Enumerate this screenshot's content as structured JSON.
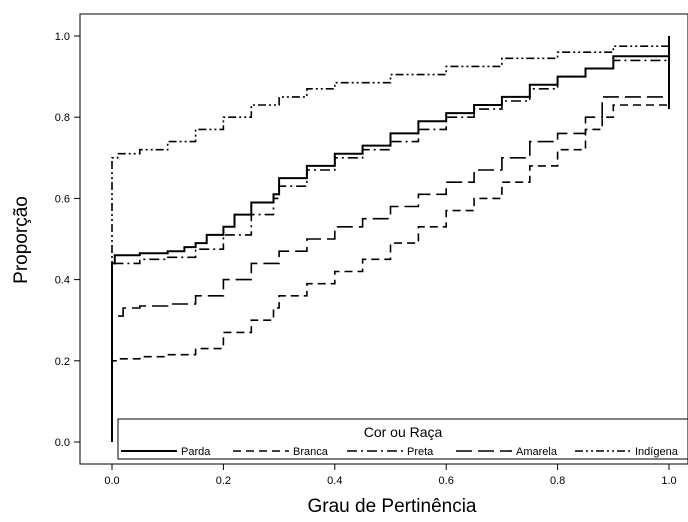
{
  "chart_data": {
    "type": "line",
    "xlabel": "Grau de Pertinência",
    "ylabel": "Proporção",
    "xlim": [
      0,
      1
    ],
    "ylim": [
      0,
      1
    ],
    "xticks": [
      "0.0",
      "0.2",
      "0.4",
      "0.6",
      "0.8",
      "1.0"
    ],
    "yticks": [
      "0.0",
      "0.2",
      "0.4",
      "0.6",
      "0.8",
      "1.0"
    ],
    "grid": false,
    "legend": {
      "title": "Cor ou Raça",
      "position": "bottom"
    },
    "series": [
      {
        "name": "Parda",
        "dash": "solid",
        "points": [
          [
            0,
            0
          ],
          [
            0,
            0.44
          ],
          [
            0.005,
            0.46
          ],
          [
            0.05,
            0.465
          ],
          [
            0.1,
            0.47
          ],
          [
            0.13,
            0.48
          ],
          [
            0.15,
            0.49
          ],
          [
            0.17,
            0.51
          ],
          [
            0.2,
            0.53
          ],
          [
            0.22,
            0.56
          ],
          [
            0.25,
            0.59
          ],
          [
            0.29,
            0.61
          ],
          [
            0.3,
            0.65
          ],
          [
            0.35,
            0.68
          ],
          [
            0.4,
            0.71
          ],
          [
            0.45,
            0.73
          ],
          [
            0.5,
            0.76
          ],
          [
            0.55,
            0.79
          ],
          [
            0.6,
            0.81
          ],
          [
            0.65,
            0.83
          ],
          [
            0.7,
            0.85
          ],
          [
            0.75,
            0.88
          ],
          [
            0.8,
            0.9
          ],
          [
            0.85,
            0.92
          ],
          [
            0.9,
            0.95
          ],
          [
            1,
            0.955
          ]
        ]
      },
      {
        "name": "Branca",
        "dash": "dashed",
        "points": [
          [
            0,
            0
          ],
          [
            0,
            0.2
          ],
          [
            0.01,
            0.205
          ],
          [
            0.05,
            0.21
          ],
          [
            0.1,
            0.215
          ],
          [
            0.15,
            0.23
          ],
          [
            0.2,
            0.27
          ],
          [
            0.25,
            0.3
          ],
          [
            0.29,
            0.33
          ],
          [
            0.3,
            0.36
          ],
          [
            0.35,
            0.39
          ],
          [
            0.4,
            0.42
          ],
          [
            0.45,
            0.45
          ],
          [
            0.5,
            0.49
          ],
          [
            0.55,
            0.53
          ],
          [
            0.6,
            0.57
          ],
          [
            0.65,
            0.6
          ],
          [
            0.7,
            0.64
          ],
          [
            0.75,
            0.68
          ],
          [
            0.8,
            0.72
          ],
          [
            0.85,
            0.77
          ],
          [
            0.88,
            0.8
          ],
          [
            0.9,
            0.83
          ],
          [
            1,
            0.84
          ]
        ]
      },
      {
        "name": "Preta",
        "dash": "dashdot",
        "points": [
          [
            0,
            0
          ],
          [
            0,
            0.44
          ],
          [
            0.05,
            0.45
          ],
          [
            0.1,
            0.455
          ],
          [
            0.15,
            0.475
          ],
          [
            0.2,
            0.51
          ],
          [
            0.25,
            0.56
          ],
          [
            0.29,
            0.6
          ],
          [
            0.3,
            0.63
          ],
          [
            0.35,
            0.67
          ],
          [
            0.4,
            0.7
          ],
          [
            0.45,
            0.72
          ],
          [
            0.5,
            0.74
          ],
          [
            0.55,
            0.77
          ],
          [
            0.6,
            0.8
          ],
          [
            0.65,
            0.82
          ],
          [
            0.7,
            0.84
          ],
          [
            0.75,
            0.87
          ],
          [
            0.8,
            0.9
          ],
          [
            0.85,
            0.92
          ],
          [
            0.9,
            0.94
          ],
          [
            1,
            0.94
          ]
        ]
      },
      {
        "name": "Amarela",
        "dash": "longdash",
        "points": [
          [
            0,
            0
          ],
          [
            0,
            0.31
          ],
          [
            0.02,
            0.33
          ],
          [
            0.05,
            0.335
          ],
          [
            0.1,
            0.34
          ],
          [
            0.15,
            0.36
          ],
          [
            0.2,
            0.4
          ],
          [
            0.25,
            0.44
          ],
          [
            0.3,
            0.47
          ],
          [
            0.35,
            0.5
          ],
          [
            0.4,
            0.53
          ],
          [
            0.45,
            0.55
          ],
          [
            0.5,
            0.58
          ],
          [
            0.55,
            0.61
          ],
          [
            0.6,
            0.64
          ],
          [
            0.65,
            0.67
          ],
          [
            0.7,
            0.7
          ],
          [
            0.75,
            0.74
          ],
          [
            0.8,
            0.76
          ],
          [
            0.85,
            0.8
          ],
          [
            0.88,
            0.85
          ],
          [
            0.9,
            0.85
          ],
          [
            1,
            0.85
          ]
        ]
      },
      {
        "name": "Indígena",
        "dash": "dashdotdot",
        "points": [
          [
            0,
            0
          ],
          [
            0,
            0.7
          ],
          [
            0.01,
            0.71
          ],
          [
            0.05,
            0.72
          ],
          [
            0.1,
            0.74
          ],
          [
            0.15,
            0.77
          ],
          [
            0.2,
            0.8
          ],
          [
            0.25,
            0.83
          ],
          [
            0.3,
            0.85
          ],
          [
            0.35,
            0.87
          ],
          [
            0.4,
            0.885
          ],
          [
            0.5,
            0.905
          ],
          [
            0.6,
            0.925
          ],
          [
            0.7,
            0.945
          ],
          [
            0.8,
            0.96
          ],
          [
            0.9,
            0.975
          ],
          [
            1,
            0.98
          ]
        ]
      }
    ]
  }
}
